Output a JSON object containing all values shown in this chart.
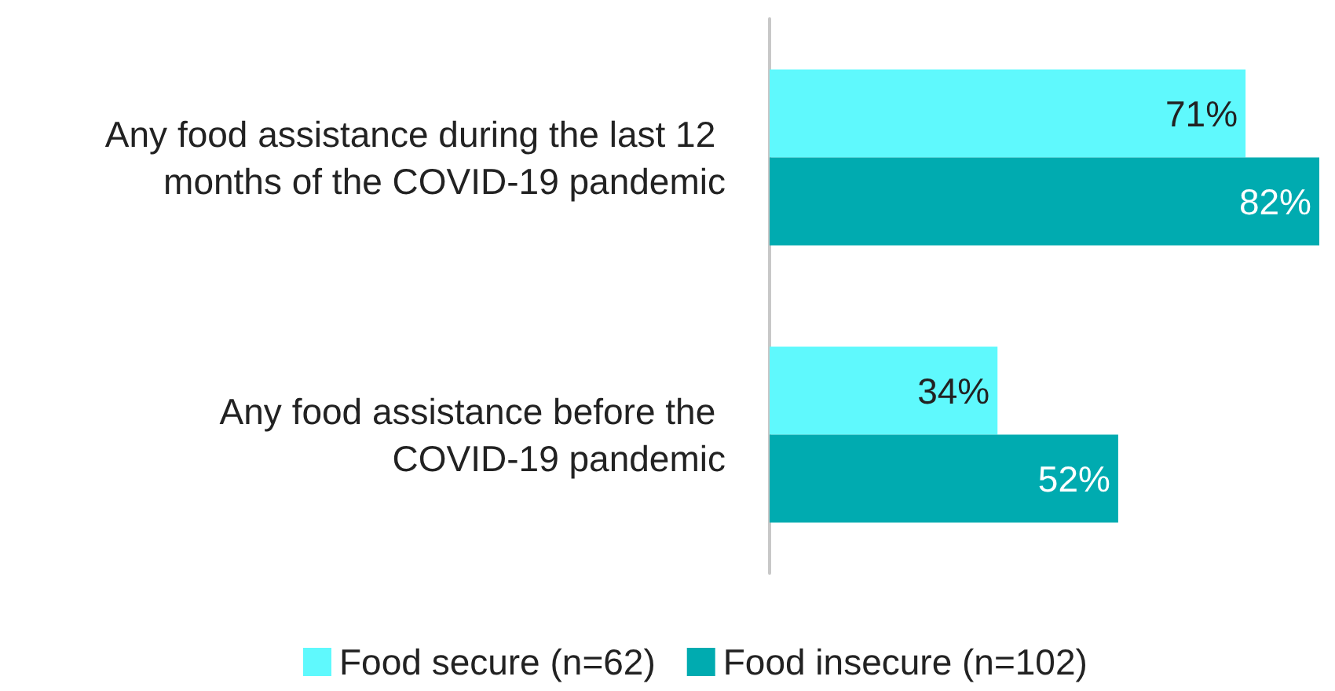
{
  "chart_data": {
    "type": "bar",
    "orientation": "horizontal",
    "categories": [
      "Any food assistance during the last 12 months of the COVID-19 pandemic",
      "Any food assistance before the COVID-19 pandemic"
    ],
    "series": [
      {
        "name": "Food secure (n=62)",
        "color": "#5ff9fd",
        "values": [
          71,
          34
        ],
        "value_labels": [
          "71%",
          "34%"
        ]
      },
      {
        "name": "Food insecure (n=102)",
        "color": "#00abb0",
        "values": [
          82,
          52
        ],
        "value_labels": [
          "82%",
          "52%"
        ]
      }
    ],
    "legend": "bottom",
    "tick_labels": "y"
  }
}
